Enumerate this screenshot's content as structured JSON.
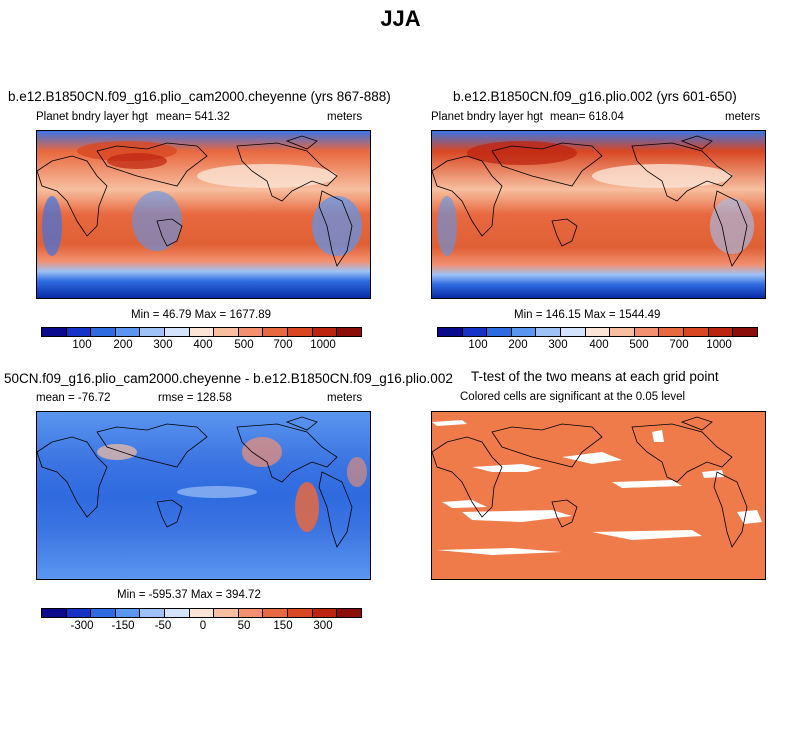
{
  "title": "JJA",
  "panels": [
    {
      "title": "b.e12.B1850CN.f09_g16.plio_cam2000.cheyenne (yrs 867-888)",
      "left_label": "Planet bndry layer hgt",
      "mean_label": "mean= 541.32",
      "units": "meters",
      "stats": "Min =  46.79 Max = 1677.89"
    },
    {
      "title": "b.e12.B1850CN.f09_g16.plio.002 (yrs 601-650)",
      "left_label": "Planet bndry layer hgt",
      "mean_label": "mean= 618.04",
      "units": "meters",
      "stats": "Min = 146.15 Max = 1544.49"
    },
    {
      "title": "50CN.f09_g16.plio_cam2000.cheyenne - b.e12.B1850CN.f09_g16.plio.002",
      "left_label": "mean = -76.72",
      "mean_label": "rmse = 128.58",
      "units": "meters",
      "stats": "Min = -595.37 Max = 394.72"
    },
    {
      "title": "T-test of the two means at each grid point",
      "subtitle": "Colored cells are significant at the 0.05 level"
    }
  ],
  "colorbar_abs": {
    "ticks": [
      "100",
      "200",
      "300",
      "400",
      "500",
      "700",
      "1000"
    ],
    "colors": [
      "#0a0a8c",
      "#1733c7",
      "#2e6be0",
      "#5a96ef",
      "#9ec2f5",
      "#d3e3fb",
      "#fbe3d5",
      "#f7bfa0",
      "#f29070",
      "#e8683f",
      "#d84722",
      "#bd2410",
      "#8c0e0a"
    ]
  },
  "colorbar_diff": {
    "ticks": [
      "-300",
      "-150",
      "-50",
      "0",
      "50",
      "150",
      "300"
    ],
    "colors": [
      "#0a0a8c",
      "#1733c7",
      "#2e6be0",
      "#5a96ef",
      "#9ec2f5",
      "#d3e3fb",
      "#fbe3d5",
      "#f7bfa0",
      "#f29070",
      "#e8683f",
      "#d84722",
      "#bd2410",
      "#8c0e0a"
    ]
  },
  "ttest_color": "#f07b4a"
}
